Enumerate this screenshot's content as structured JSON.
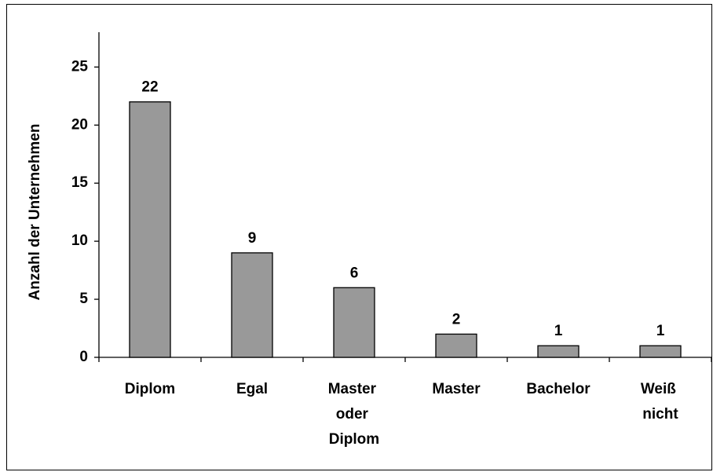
{
  "chart_data": {
    "type": "bar",
    "y_label": "Anzahl der Unternehmen",
    "categories": [
      "Diplom",
      "Egal",
      "Master oder Diplom",
      "Master",
      "Bachelor",
      "Weiß nicht"
    ],
    "values": [
      22,
      9,
      6,
      2,
      1,
      1
    ],
    "color": "#999999",
    "ylim": [
      0,
      28
    ],
    "yticks": [
      0,
      5,
      10,
      15,
      20,
      25
    ],
    "grid": false
  }
}
